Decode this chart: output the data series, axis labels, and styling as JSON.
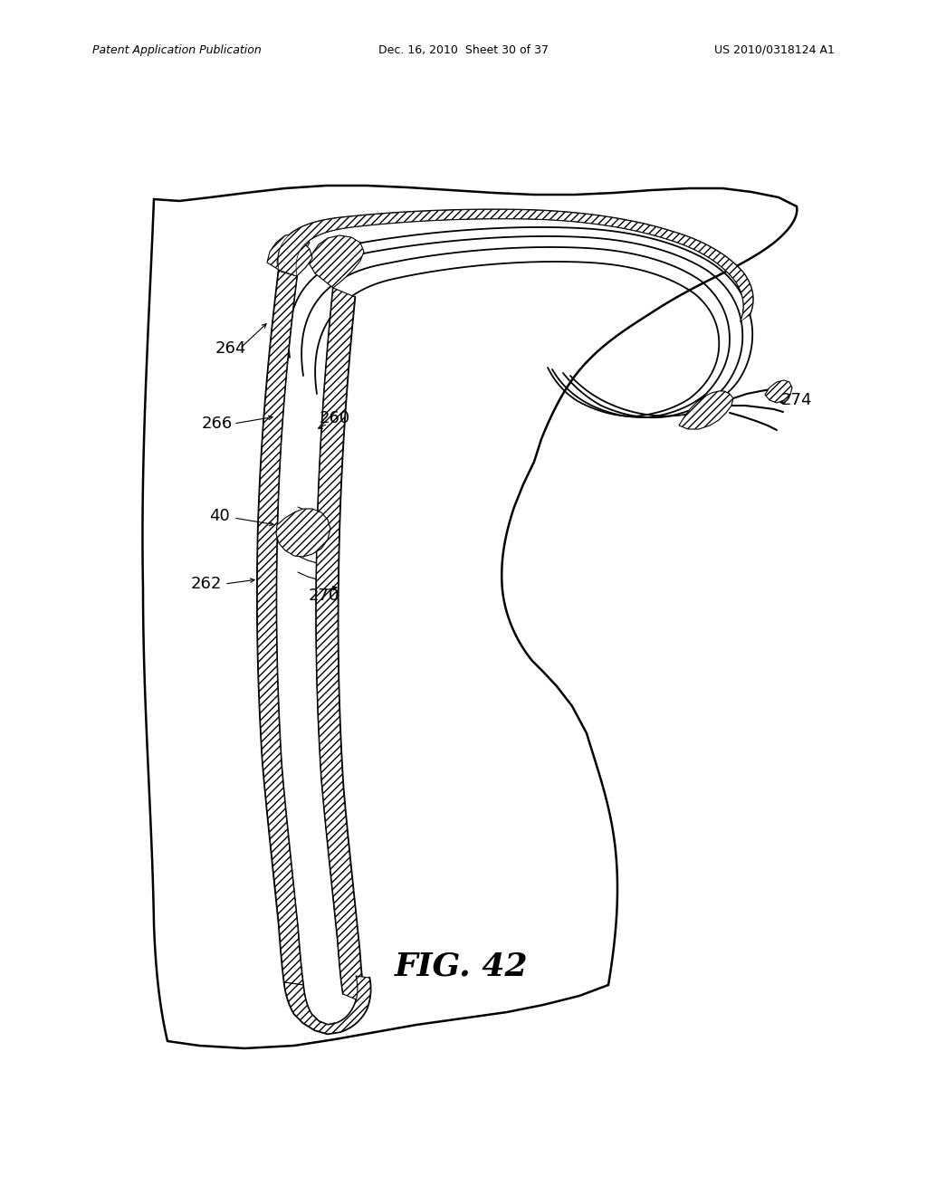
{
  "header_left": "Patent Application Publication",
  "header_center": "Dec. 16, 2010  Sheet 30 of 37",
  "header_right": "US 2010/0318124 A1",
  "fig_label": "FIG. 42",
  "background_color": "#ffffff",
  "line_color": "#000000"
}
